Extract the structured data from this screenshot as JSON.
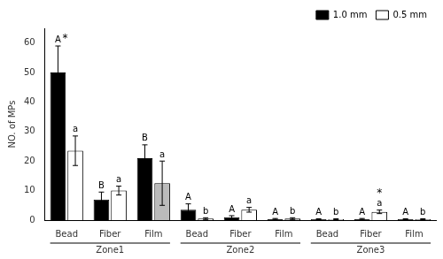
{
  "chart_data": {
    "type": "bar",
    "ylabel": "NO. of MPs",
    "categories": [
      "Bead",
      "Fiber",
      "Film",
      "Bead",
      "Fiber",
      "Film",
      "Bead",
      "Fiber",
      "Film"
    ],
    "zones": [
      "Zone1",
      "Zone2",
      "Zone3"
    ],
    "ylim": [
      0,
      65
    ],
    "yticks": [
      0,
      10,
      20,
      30,
      40,
      50,
      60
    ],
    "grid": false,
    "legend": "upper right",
    "series": [
      {
        "name": "1.0 mm",
        "color": "#000000",
        "values": [
          50,
          7,
          21,
          3.5,
          1.0,
          0.4,
          0.3,
          0.4,
          0.3
        ],
        "errors": [
          9,
          2.5,
          4.5,
          2.0,
          0.5,
          0.15,
          0.15,
          0.15,
          0.15
        ],
        "annotations": [
          "A",
          "B",
          "B",
          "A",
          "A",
          "A",
          "A",
          "A",
          "A"
        ],
        "asterisks": [
          "*",
          null,
          null,
          null,
          null,
          null,
          null,
          null,
          null
        ]
      },
      {
        "name": "0.5 mm",
        "color": "#ffffff",
        "colors": [
          "#ffffff",
          "#ffffff",
          "#bbbbbb",
          "#ffffff",
          "#ffffff",
          "#bbbbbb",
          "#ffffff",
          "#ffffff",
          "#bbbbbb"
        ],
        "values": [
          23.5,
          10,
          12.5,
          0.5,
          3.5,
          0.5,
          0.3,
          2.8,
          0.3
        ],
        "errors": [
          5,
          1.5,
          7.5,
          0.3,
          0.8,
          0.3,
          0.15,
          0.6,
          0.15
        ],
        "annotations": [
          "a",
          "a",
          "a",
          "b",
          "a",
          "b",
          "b",
          "a",
          "b"
        ],
        "asterisks": [
          null,
          null,
          null,
          null,
          null,
          null,
          null,
          "*",
          null
        ]
      }
    ]
  }
}
